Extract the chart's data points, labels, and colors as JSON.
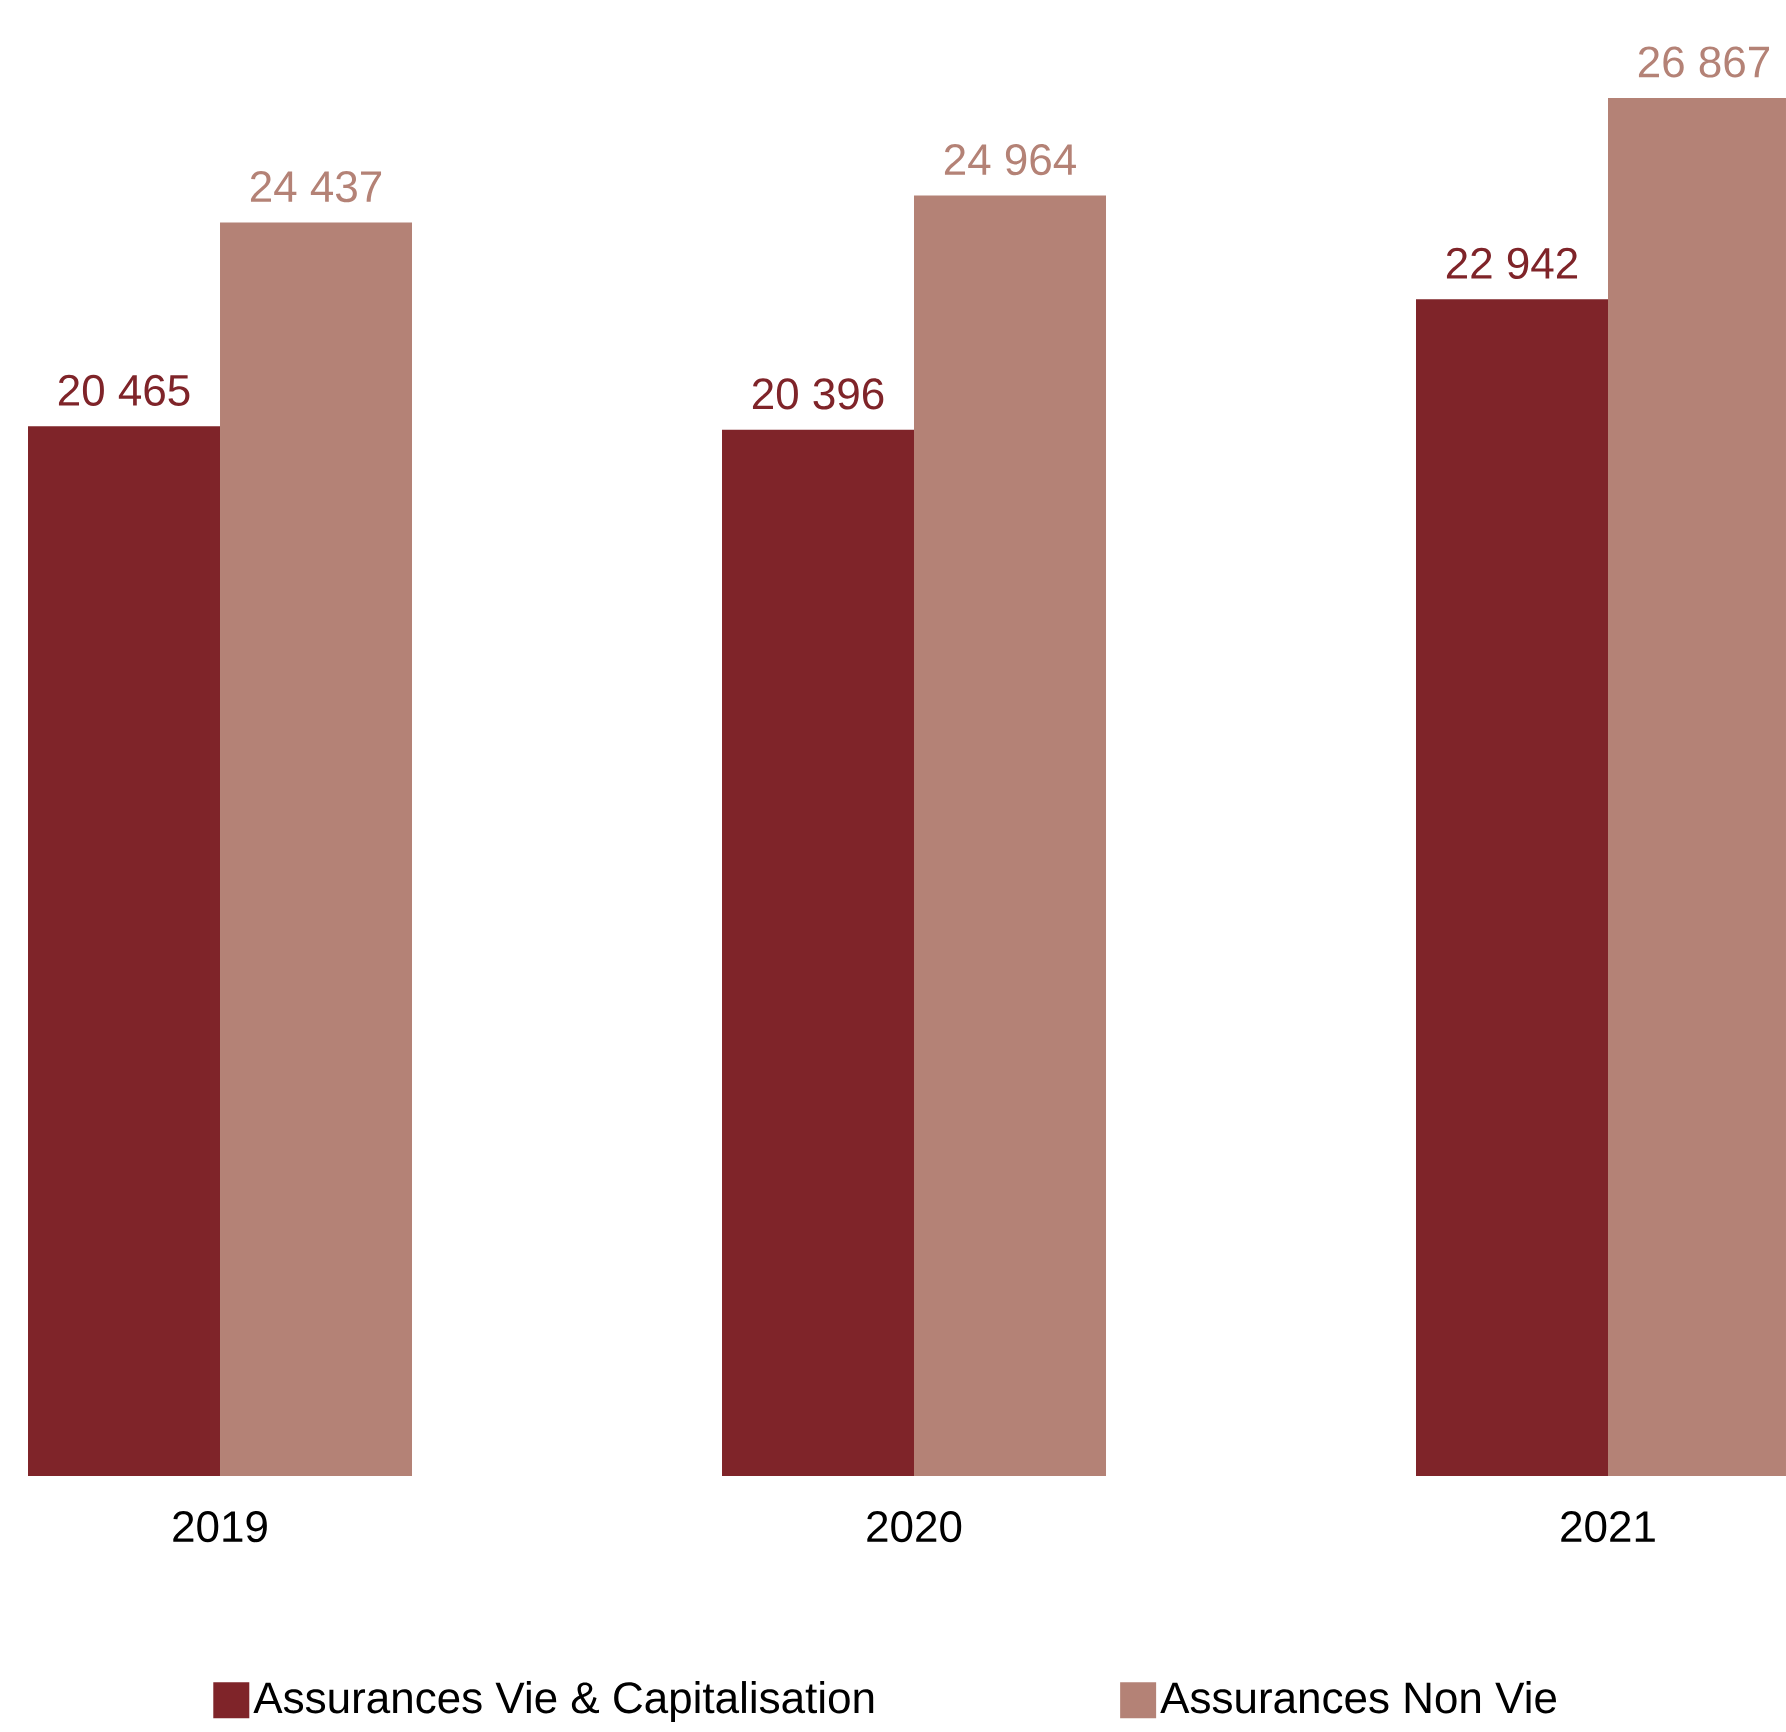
{
  "chart_data": {
    "type": "bar",
    "categories": [
      "2019",
      "2020",
      "2021"
    ],
    "series": [
      {
        "name": "Assurances Vie & Capitalisation",
        "color": "#7f2429",
        "values": [
          20465,
          20396,
          22942
        ],
        "value_labels": [
          "20 465",
          "20 396",
          "22 942"
        ]
      },
      {
        "name": "Assurances Non Vie",
        "color": "#b48276",
        "values": [
          24437,
          24964,
          26867
        ],
        "value_labels": [
          "24 437",
          "24 964",
          "26 867"
        ]
      }
    ],
    "legend": "bottom"
  }
}
